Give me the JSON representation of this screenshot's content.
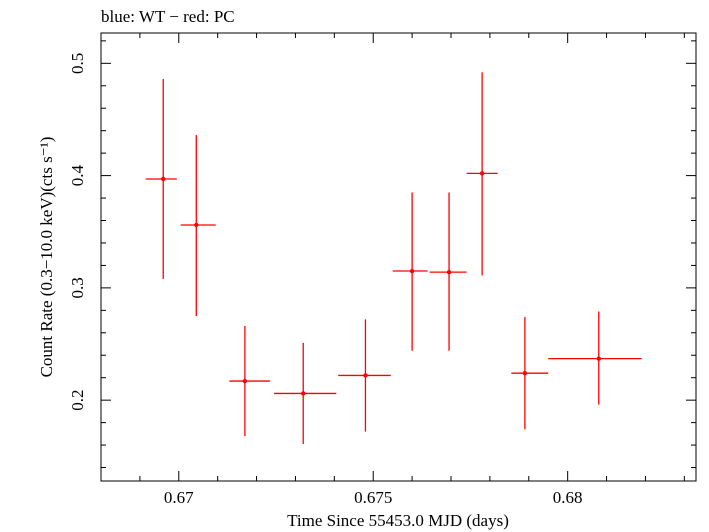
{
  "chart_data": {
    "type": "scatter",
    "title": "blue: WT − red: PC",
    "xlabel": "Time Since 55453.0 MJD (days)",
    "ylabel": "Count Rate (0.3−10.0 keV)(cts s⁻¹)",
    "xlim": [
      0.668,
      0.6833
    ],
    "ylim": [
      0.128,
      0.527
    ],
    "x_ticks": [
      0.67,
      0.675,
      0.68
    ],
    "x_tick_labels": [
      "0.67",
      "0.675",
      "0.68"
    ],
    "y_ticks": [
      0.2,
      0.3,
      0.4,
      0.5
    ],
    "y_tick_labels": [
      "0.2",
      "0.3",
      "0.4",
      "0.5"
    ],
    "grid": false,
    "series": [
      {
        "color": "#ff0000",
        "points": [
          {
            "x": 0.6696,
            "y": 0.397,
            "x_lo": 0.66915,
            "x_hi": 0.66995,
            "y_lo": 0.308,
            "y_hi": 0.486
          },
          {
            "x": 0.67045,
            "y": 0.356,
            "x_lo": 0.67005,
            "x_hi": 0.67095,
            "y_lo": 0.275,
            "y_hi": 0.436
          },
          {
            "x": 0.6717,
            "y": 0.217,
            "x_lo": 0.6713,
            "x_hi": 0.67235,
            "y_lo": 0.168,
            "y_hi": 0.266
          },
          {
            "x": 0.6732,
            "y": 0.206,
            "x_lo": 0.67245,
            "x_hi": 0.67405,
            "y_lo": 0.161,
            "y_hi": 0.251
          },
          {
            "x": 0.6748,
            "y": 0.222,
            "x_lo": 0.6741,
            "x_hi": 0.67545,
            "y_lo": 0.172,
            "y_hi": 0.272
          },
          {
            "x": 0.676,
            "y": 0.315,
            "x_lo": 0.6755,
            "x_hi": 0.6764,
            "y_lo": 0.244,
            "y_hi": 0.385
          },
          {
            "x": 0.67695,
            "y": 0.314,
            "x_lo": 0.67645,
            "x_hi": 0.6774,
            "y_lo": 0.244,
            "y_hi": 0.385
          },
          {
            "x": 0.6778,
            "y": 0.402,
            "x_lo": 0.6774,
            "x_hi": 0.6782,
            "y_lo": 0.311,
            "y_hi": 0.492
          },
          {
            "x": 0.6789,
            "y": 0.224,
            "x_lo": 0.67855,
            "x_hi": 0.6795,
            "y_lo": 0.174,
            "y_hi": 0.274
          },
          {
            "x": 0.6808,
            "y": 0.237,
            "x_lo": 0.6795,
            "x_hi": 0.6819,
            "y_lo": 0.196,
            "y_hi": 0.279
          }
        ]
      }
    ]
  }
}
